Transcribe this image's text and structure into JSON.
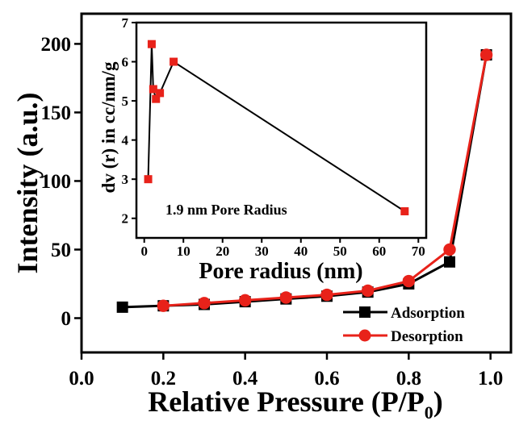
{
  "chart_data": [
    {
      "type": "line",
      "xlabel": "Relative Pressure (P/P",
      "xlabel_sub": "0",
      "xlabel_close": ")",
      "ylabel": "Intensity (a.u.)",
      "xlim": [
        0.0,
        1.05
      ],
      "ylim": [
        -25,
        222
      ],
      "xticks": [
        0.0,
        0.2,
        0.4,
        0.6,
        0.8,
        1.0
      ],
      "yticks": [
        0,
        50,
        100,
        150,
        200
      ],
      "legend_position": "bottom-right",
      "series": [
        {
          "name": "Adsorption",
          "color": "#000000",
          "marker": "square",
          "x": [
            0.1,
            0.2,
            0.3,
            0.4,
            0.5,
            0.6,
            0.7,
            0.8,
            0.9,
            0.99
          ],
          "y": [
            8,
            9,
            10,
            12,
            14,
            16,
            19,
            25,
            41,
            192
          ]
        },
        {
          "name": "Desorption",
          "color": "#e8221a",
          "marker": "circle",
          "x": [
            0.2,
            0.3,
            0.4,
            0.5,
            0.6,
            0.7,
            0.8,
            0.9,
            0.99
          ],
          "y": [
            9,
            11,
            13,
            15,
            17,
            20,
            27,
            50,
            192
          ]
        }
      ]
    },
    {
      "type": "line",
      "xlabel": "Pore radius (nm)",
      "ylabel": "dv (r) in cc/nm/g",
      "xlim": [
        -2,
        72
      ],
      "ylim": [
        1.5,
        7
      ],
      "xticks": [
        0,
        10,
        20,
        30,
        40,
        50,
        60,
        70
      ],
      "yticks": [
        2,
        3,
        4,
        5,
        6,
        7
      ],
      "annotation": "1.9 nm Pore Radius",
      "series": [
        {
          "line_color": "#000000",
          "marker_color": "#e8221a",
          "marker": "square",
          "x": [
            1.0,
            1.9,
            2.3,
            3.0,
            4.0,
            7.5,
            66.5
          ],
          "y": [
            3.0,
            6.45,
            5.3,
            5.05,
            5.2,
            6.0,
            2.18
          ]
        }
      ]
    }
  ]
}
